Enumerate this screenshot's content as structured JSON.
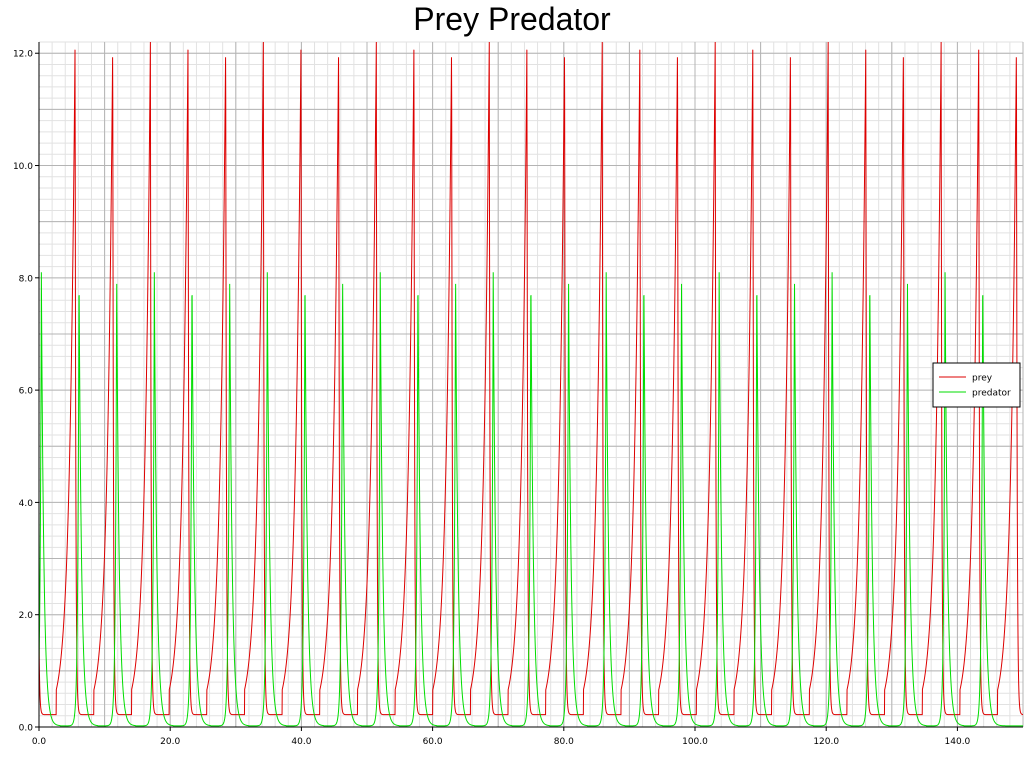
{
  "chart_data": {
    "type": "line",
    "title": "Prey Predator",
    "xlabel": "",
    "ylabel": "",
    "xlim": [
      0,
      150
    ],
    "ylim": [
      0,
      12.2
    ],
    "x_ticks": [
      "0.0",
      "20.0",
      "40.0",
      "60.0",
      "80.0",
      "100.0",
      "120.0",
      "140.0"
    ],
    "y_ticks": [
      "0.0",
      "2.0",
      "4.0",
      "6.0",
      "8.0",
      "10.0",
      "12.0"
    ],
    "x_tick_values": [
      0,
      20,
      40,
      60,
      80,
      100,
      120,
      140
    ],
    "y_tick_values": [
      0,
      2,
      4,
      6,
      8,
      10,
      12
    ],
    "grid": true,
    "legend_position": "right",
    "period": 5.74,
    "series": [
      {
        "name": "prey",
        "color": "#dd0000",
        "min": 0.22,
        "max": 12.2,
        "peak_times": [
          5.5,
          11.24,
          16.98,
          22.72,
          28.46,
          34.2,
          39.94,
          45.68,
          51.42,
          57.16,
          62.9,
          68.64,
          74.38,
          80.12,
          85.86,
          91.6,
          97.34,
          103.08,
          108.82,
          114.56,
          120.3,
          126.04,
          131.78,
          137.52,
          143.26,
          149.0
        ]
      },
      {
        "name": "predator",
        "color": "#00dd00",
        "min": 0.02,
        "max": 8.1,
        "peak_times": [
          6.1,
          11.84,
          17.58,
          23.32,
          29.06,
          34.8,
          40.54,
          46.28,
          52.02,
          57.76,
          63.5,
          69.24,
          74.98,
          80.72,
          86.46,
          92.2,
          97.94,
          103.68,
          109.42,
          115.16,
          120.9,
          126.64,
          132.38,
          138.12,
          143.86
        ]
      }
    ]
  }
}
